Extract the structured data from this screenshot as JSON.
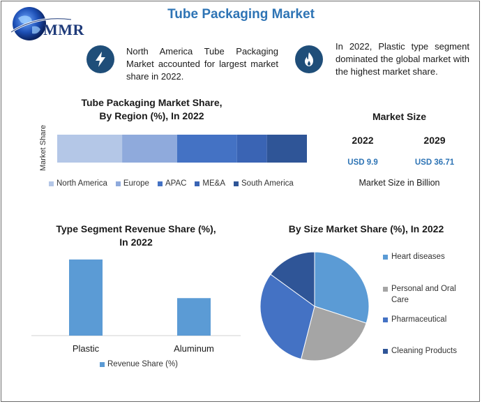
{
  "page": {
    "title": "Tube Packaging Market",
    "logo_text": "MMR"
  },
  "facts": {
    "left": "North America Tube Packaging Market accounted for largest market share in 2022.",
    "right": "In 2022, Plastic type segment dominated the global market with the highest market share."
  },
  "market_size": {
    "title": "Market Size",
    "years": [
      "2022",
      "2029"
    ],
    "values": [
      "USD 9.9",
      "USD 36.71"
    ],
    "note": "Market Size in Billion"
  },
  "colors": {
    "title": "#2e74b5",
    "region": [
      "#b4c7e7",
      "#8faadc",
      "#4472c4",
      "#3a64b4",
      "#2f5597"
    ],
    "type_bar": "#5b9bd5",
    "pie": [
      "#5b9bd5",
      "#a5a5a5",
      "#4472c4",
      "#2f5597"
    ]
  },
  "chart_data": [
    {
      "type": "bar",
      "orientation": "horizontal-stacked",
      "title": "Tube Packaging Market Share, By Region (%), In 2022",
      "title_lines": [
        "Tube Packaging Market Share,",
        "By Region (%), In 2022"
      ],
      "ylabel": "Market Share",
      "categories": [
        "Market Share"
      ],
      "series": [
        {
          "name": "North America",
          "values": [
            26
          ]
        },
        {
          "name": "Europe",
          "values": [
            22
          ]
        },
        {
          "name": "APAC",
          "values": [
            24
          ]
        },
        {
          "name": "ME&A",
          "values": [
            12
          ]
        },
        {
          "name": "South America",
          "values": [
            16
          ]
        }
      ],
      "xlim": [
        0,
        100
      ],
      "legend": "bottom"
    },
    {
      "type": "bar",
      "title": "Type Segment Revenue Share (%), In 2022",
      "title_lines": [
        "Type Segment Revenue Share (%),",
        "In 2022"
      ],
      "categories": [
        "Plastic",
        "Aluminum"
      ],
      "series": [
        {
          "name": "Revenue Share (%)",
          "values": [
            67,
            33
          ]
        }
      ],
      "ylim": [
        0,
        70
      ],
      "legend": "bottom"
    },
    {
      "type": "pie",
      "title": "By Size Market Share (%), In 2022",
      "labels": [
        "Heart diseases",
        "Personal and Oral Care",
        "Pharmaceutical",
        "Cleaning Products"
      ],
      "label_lines": [
        [
          "Heart diseases"
        ],
        [
          "Personal and Oral",
          "Care"
        ],
        [
          "Pharmaceutical"
        ],
        [
          "Cleaning Products"
        ]
      ],
      "values": [
        30,
        24,
        31,
        15
      ],
      "legend": "right"
    }
  ]
}
